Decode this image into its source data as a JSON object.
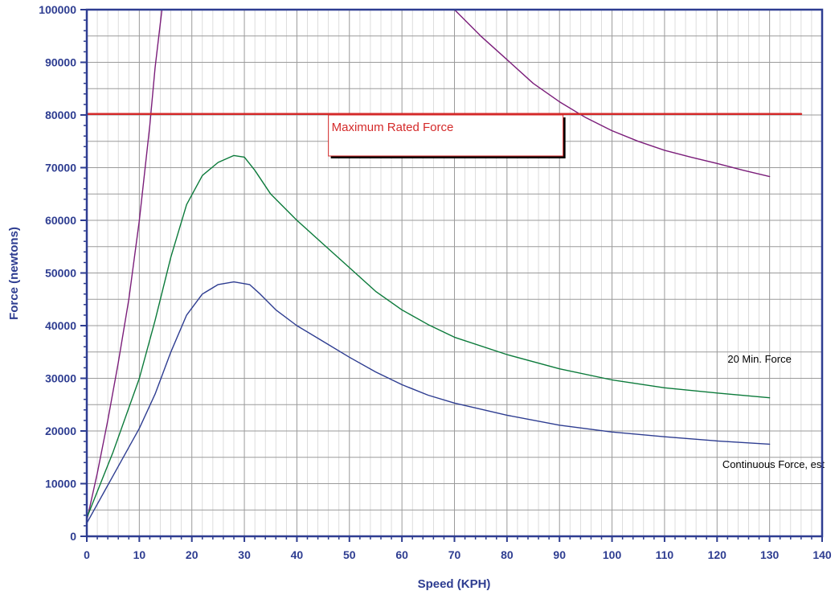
{
  "chart_data": {
    "type": "line",
    "xlabel": "Speed  (KPH)",
    "ylabel": "Force  (newtons)",
    "xlim": [
      0,
      140
    ],
    "ylim": [
      0,
      100000
    ],
    "x_ticks": [
      0,
      10,
      20,
      30,
      40,
      50,
      60,
      70,
      80,
      90,
      100,
      110,
      120,
      130,
      140
    ],
    "y_ticks": [
      0,
      10000,
      20000,
      30000,
      40000,
      50000,
      60000,
      70000,
      80000,
      90000,
      100000
    ],
    "grid": true,
    "colors": {
      "axis": "#2e3d91",
      "grid": "#a6a6a6",
      "purple": "#7b1e7a",
      "green": "#0b7a3a",
      "blue": "#2e3d91",
      "red": "#d42a2a"
    },
    "series": [
      {
        "key": "purple_rising",
        "color": "#7b1e7a",
        "points": [
          [
            0,
            3000
          ],
          [
            2,
            12000
          ],
          [
            4,
            22000
          ],
          [
            6,
            33000
          ],
          [
            8,
            45000
          ],
          [
            10,
            60000
          ],
          [
            11,
            69000
          ],
          [
            12,
            78000
          ],
          [
            13,
            89000
          ],
          [
            14.3,
            100000
          ]
        ]
      },
      {
        "key": "purple_falling",
        "color": "#7b1e7a",
        "points": [
          [
            70,
            100000
          ],
          [
            75,
            95000
          ],
          [
            80,
            90500
          ],
          [
            85,
            86000
          ],
          [
            90,
            82500
          ],
          [
            95,
            79500
          ],
          [
            100,
            77000
          ],
          [
            105,
            75000
          ],
          [
            110,
            73300
          ],
          [
            115,
            72000
          ],
          [
            120,
            70800
          ],
          [
            125,
            69500
          ],
          [
            130,
            68300
          ]
        ]
      },
      {
        "name": "20 Min. Force",
        "color": "#0b7a3a",
        "points": [
          [
            0,
            3500
          ],
          [
            5,
            16000
          ],
          [
            10,
            30000
          ],
          [
            13,
            41000
          ],
          [
            16,
            53000
          ],
          [
            19,
            63000
          ],
          [
            22,
            68500
          ],
          [
            25,
            71000
          ],
          [
            28,
            72300
          ],
          [
            30,
            72000
          ],
          [
            32,
            69500
          ],
          [
            35,
            65000
          ],
          [
            40,
            60000
          ],
          [
            45,
            55500
          ],
          [
            50,
            51000
          ],
          [
            55,
            46500
          ],
          [
            60,
            43000
          ],
          [
            65,
            40200
          ],
          [
            70,
            37800
          ],
          [
            80,
            34500
          ],
          [
            90,
            31800
          ],
          [
            100,
            29700
          ],
          [
            110,
            28200
          ],
          [
            120,
            27200
          ],
          [
            130,
            26300
          ]
        ]
      },
      {
        "name": "Continuous Force, est",
        "color": "#2e3d91",
        "points": [
          [
            0,
            2500
          ],
          [
            5,
            11500
          ],
          [
            10,
            20500
          ],
          [
            13,
            27000
          ],
          [
            16,
            35000
          ],
          [
            19,
            42000
          ],
          [
            22,
            46000
          ],
          [
            25,
            47800
          ],
          [
            28,
            48300
          ],
          [
            31,
            47800
          ],
          [
            33,
            46000
          ],
          [
            36,
            43000
          ],
          [
            40,
            40000
          ],
          [
            45,
            37000
          ],
          [
            50,
            34000
          ],
          [
            55,
            31200
          ],
          [
            60,
            28800
          ],
          [
            65,
            26800
          ],
          [
            70,
            25300
          ],
          [
            80,
            23000
          ],
          [
            90,
            21100
          ],
          [
            100,
            19800
          ],
          [
            110,
            18900
          ],
          [
            120,
            18100
          ],
          [
            130,
            17500
          ]
        ]
      },
      {
        "name": "Maximum Rated Force",
        "color": "#d42a2a",
        "points": [
          [
            0,
            80200
          ],
          [
            136,
            80200
          ]
        ]
      }
    ],
    "annotations": [
      {
        "text": "Maximum Rated Force",
        "x": 46,
        "y": 80000,
        "color": "#d42a2a"
      },
      {
        "text": "20 Min. Force",
        "x": 122,
        "y": 33000
      },
      {
        "text": "Continuous Force, est",
        "x": 121,
        "y": 13000
      }
    ]
  }
}
